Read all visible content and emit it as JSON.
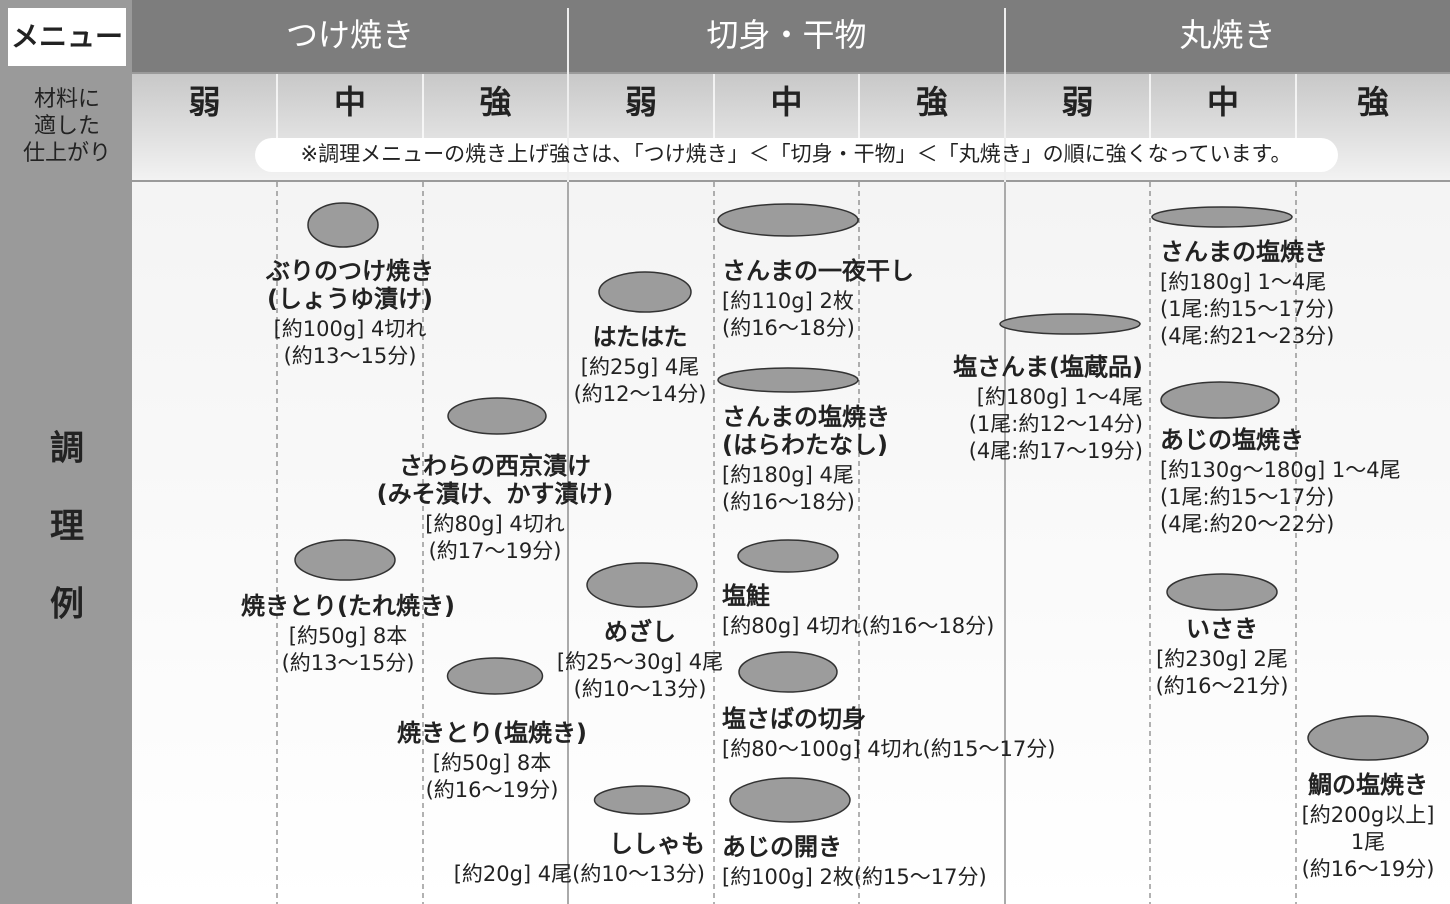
{
  "header": {
    "menu": "メニュー",
    "groups": [
      "つけ焼き",
      "切身・干物",
      "丸焼き"
    ]
  },
  "finish": {
    "label": [
      "材料に",
      "適した",
      "仕上がり"
    ],
    "levels": [
      "弱",
      "中",
      "強",
      "弱",
      "中",
      "強",
      "弱",
      "中",
      "強"
    ],
    "note": "※調理メニューの焼き上げ強さは、「つけ焼き」＜「切身・干物」＜「丸焼き」の順に強くなっています。"
  },
  "examples": {
    "label": [
      "調",
      "理",
      "例"
    ],
    "items": [
      {
        "name": [
          "ぶりのつけ焼き",
          "(しょうゆ漬け)"
        ],
        "details": [
          "[約100g] 4切れ",
          "(約13〜15分)"
        ]
      },
      {
        "name": [
          "さわらの西京漬け",
          "(みそ漬け、かす漬け)"
        ],
        "details": [
          "[約80g] 4切れ",
          "(約17〜19分)"
        ]
      },
      {
        "name": [
          "焼きとり(たれ焼き)"
        ],
        "details": [
          "[約50g] 8本",
          "(約13〜15分)"
        ]
      },
      {
        "name": [
          "焼きとり(塩焼き)"
        ],
        "details": [
          "[約50g] 8本",
          "(約16〜19分)"
        ]
      },
      {
        "name": [
          "はたはた"
        ],
        "details": [
          "[約25g] 4尾",
          "(約12〜14分)"
        ]
      },
      {
        "name": [
          "めざし"
        ],
        "details": [
          "[約25〜30g] 4尾",
          "(約10〜13分)"
        ]
      },
      {
        "name": [
          "ししゃも"
        ],
        "details": [
          "[約20g] 4尾(約10〜13分)"
        ]
      },
      {
        "name": [
          "さんまの一夜干し"
        ],
        "details": [
          "[約110g] 2枚",
          "(約16〜18分)"
        ]
      },
      {
        "name": [
          "さんまの塩焼き",
          "(はらわたなし)"
        ],
        "details": [
          "[約180g] 4尾",
          "(約16〜18分)"
        ]
      },
      {
        "name": [
          "塩鮭"
        ],
        "details": [
          "[約80g] 4切れ(約16〜18分)"
        ]
      },
      {
        "name": [
          "塩さばの切身"
        ],
        "details": [
          "[約80〜100g] 4切れ(約15〜17分)"
        ]
      },
      {
        "name": [
          "あじの開き"
        ],
        "details": [
          "[約100g] 2枚(約15〜17分)"
        ]
      },
      {
        "name": [
          "塩さんま(塩蔵品)"
        ],
        "details": [
          "[約180g] 1〜4尾",
          "(1尾:約12〜14分)",
          "(4尾:約17〜19分)"
        ]
      },
      {
        "name": [
          "さんまの塩焼き"
        ],
        "details": [
          "[約180g] 1〜4尾",
          "(1尾:約15〜17分)",
          "(4尾:約21〜23分)"
        ]
      },
      {
        "name": [
          "あじの塩焼き"
        ],
        "details": [
          "[約130g〜180g] 1〜4尾",
          "(1尾:約15〜17分)",
          "(4尾:約20〜22分)"
        ]
      },
      {
        "name": [
          "いさき"
        ],
        "details": [
          "[約230g] 2尾",
          "(約16〜21分)"
        ]
      },
      {
        "name": [
          "鯛の塩焼き"
        ],
        "details": [
          "[約200g以上]",
          "1尾",
          "(約16〜19分)"
        ]
      }
    ]
  }
}
